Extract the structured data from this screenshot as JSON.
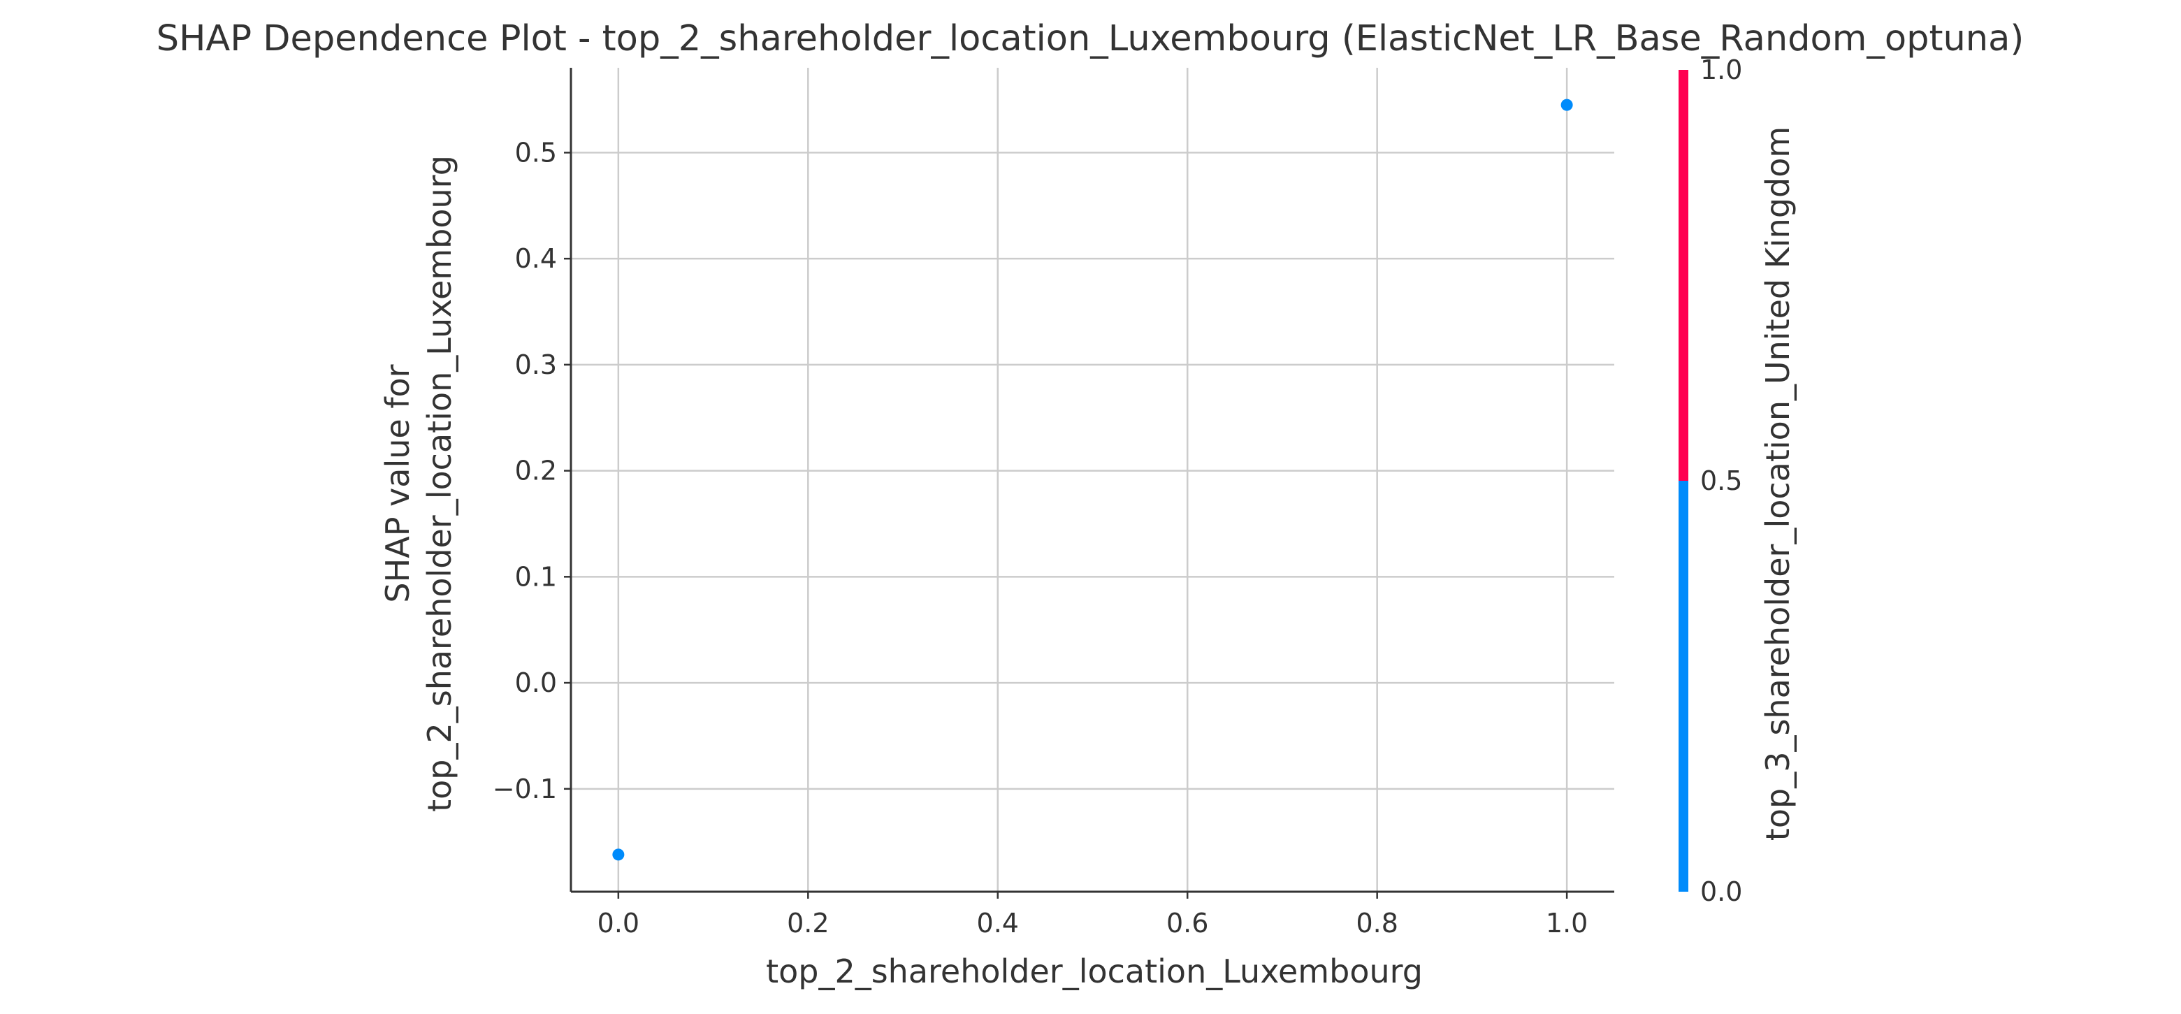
{
  "chart_data": {
    "type": "scatter",
    "title": "SHAP Dependence Plot - top_2_shareholder_location_Luxembourg (ElasticNet_LR_Base_Random_optuna)",
    "xlabel": "top_2_shareholder_location_Luxembourg",
    "ylabel_lines": [
      "SHAP value for",
      "top_2_shareholder_location_Luxembourg"
    ],
    "xlim": [
      -0.05,
      1.05
    ],
    "ylim": [
      -0.197,
      0.58
    ],
    "x_ticks": [
      0.0,
      0.2,
      0.4,
      0.6,
      0.8,
      1.0
    ],
    "x_tick_labels": [
      "0.0",
      "0.2",
      "0.4",
      "0.6",
      "0.8",
      "1.0"
    ],
    "y_ticks": [
      -0.1,
      0.0,
      0.1,
      0.2,
      0.3,
      0.4,
      0.5
    ],
    "y_tick_labels": [
      "−0.1",
      "0.0",
      "0.1",
      "0.2",
      "0.3",
      "0.4",
      "0.5"
    ],
    "grid": true,
    "points": [
      {
        "x": 0.0,
        "y": -0.162,
        "color_value": 0.0
      },
      {
        "x": 1.0,
        "y": 0.545,
        "color_value": 0.0
      }
    ],
    "colorbar": {
      "label": "top_3_shareholder_location_United Kingdom",
      "range": [
        0.0,
        1.0
      ],
      "ticks": [
        0.0,
        0.5,
        1.0
      ],
      "tick_labels": [
        "0.0",
        "0.5",
        "1.0"
      ],
      "colors": {
        "low": "#008bfb",
        "high": "#ff0051"
      }
    }
  }
}
